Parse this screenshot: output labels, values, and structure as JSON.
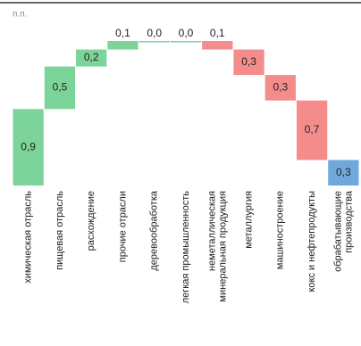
{
  "chart_data": {
    "type": "waterfall",
    "unit_label": "п.п.",
    "categories": [
      "химическая отрасль",
      "пищевая отрасль",
      "расхождение",
      "прочие отрасли",
      "деревообработка",
      "легкая промышленность",
      "неметаллическая\nминеральная продукция",
      "металлургия",
      "машиностроение",
      "кокс и нефтепродукты",
      "обрабатывающие\nпроизводства"
    ],
    "values": [
      0.9,
      0.5,
      0.2,
      0.1,
      0.0,
      0.0,
      -0.1,
      -0.3,
      -0.3,
      -0.7,
      0.3
    ],
    "value_labels": [
      "0,9",
      "0,5",
      "0,2",
      "0,1",
      "0,0",
      "0,0",
      "0,1",
      "0,3",
      "0,3",
      "0,7",
      "0,3"
    ],
    "measures": [
      "relative",
      "relative",
      "relative",
      "relative",
      "relative",
      "relative",
      "relative",
      "relative",
      "relative",
      "relative",
      "total"
    ],
    "increase_color": "#7dd49a",
    "decrease_color": "#f48c8c",
    "total_color": "#6fa8dc"
  }
}
